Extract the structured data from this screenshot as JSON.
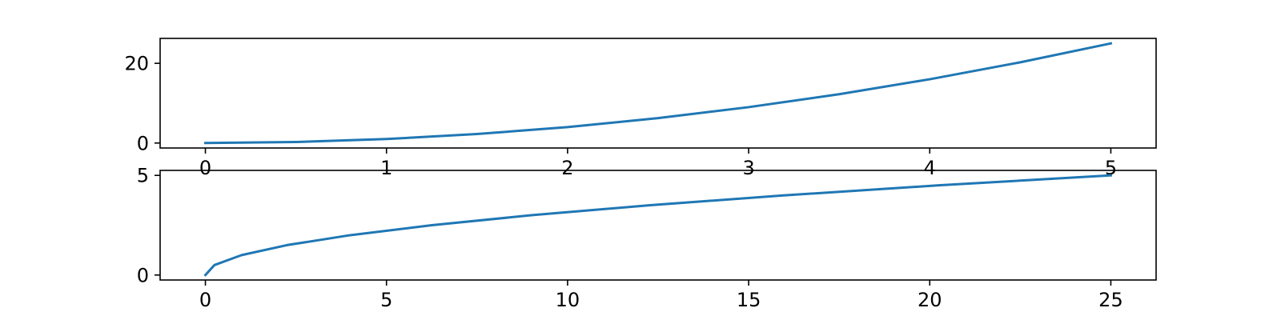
{
  "chart_data": [
    {
      "type": "line",
      "title": "",
      "xlabel": "",
      "ylabel": "",
      "xlim": [
        -0.25,
        5.25
      ],
      "ylim": [
        -1.25,
        26.25
      ],
      "xticks": [
        0,
        1,
        2,
        3,
        4,
        5
      ],
      "xtick_labels": [
        "0",
        "1",
        "2",
        "3",
        "4",
        "5"
      ],
      "yticks": [
        0,
        20
      ],
      "ytick_labels": [
        "0",
        "20"
      ],
      "grid": false,
      "color": "#1f77b4",
      "series": [
        {
          "x": [
            0,
            0.5,
            1,
            1.5,
            2,
            2.5,
            3,
            3.5,
            4,
            4.5,
            5
          ],
          "y": [
            0,
            0.25,
            1,
            2.25,
            4,
            6.25,
            9,
            12.25,
            16,
            20.25,
            25
          ]
        }
      ]
    },
    {
      "type": "line",
      "title": "",
      "xlabel": "",
      "ylabel": "",
      "xlim": [
        -1.25,
        26.25
      ],
      "ylim": [
        -0.25,
        5.25
      ],
      "xticks": [
        0,
        5,
        10,
        15,
        20,
        25
      ],
      "xtick_labels": [
        "0",
        "5",
        "10",
        "15",
        "20",
        "25"
      ],
      "yticks": [
        0,
        5
      ],
      "ytick_labels": [
        "0",
        "5"
      ],
      "grid": false,
      "color": "#1f77b4",
      "series": [
        {
          "x": [
            0,
            0.25,
            1,
            2.25,
            4,
            6.25,
            9,
            12.25,
            16,
            20.25,
            25
          ],
          "y": [
            0,
            0.5,
            1,
            1.5,
            2,
            2.5,
            3,
            3.5,
            4,
            4.5,
            5
          ]
        }
      ]
    }
  ]
}
